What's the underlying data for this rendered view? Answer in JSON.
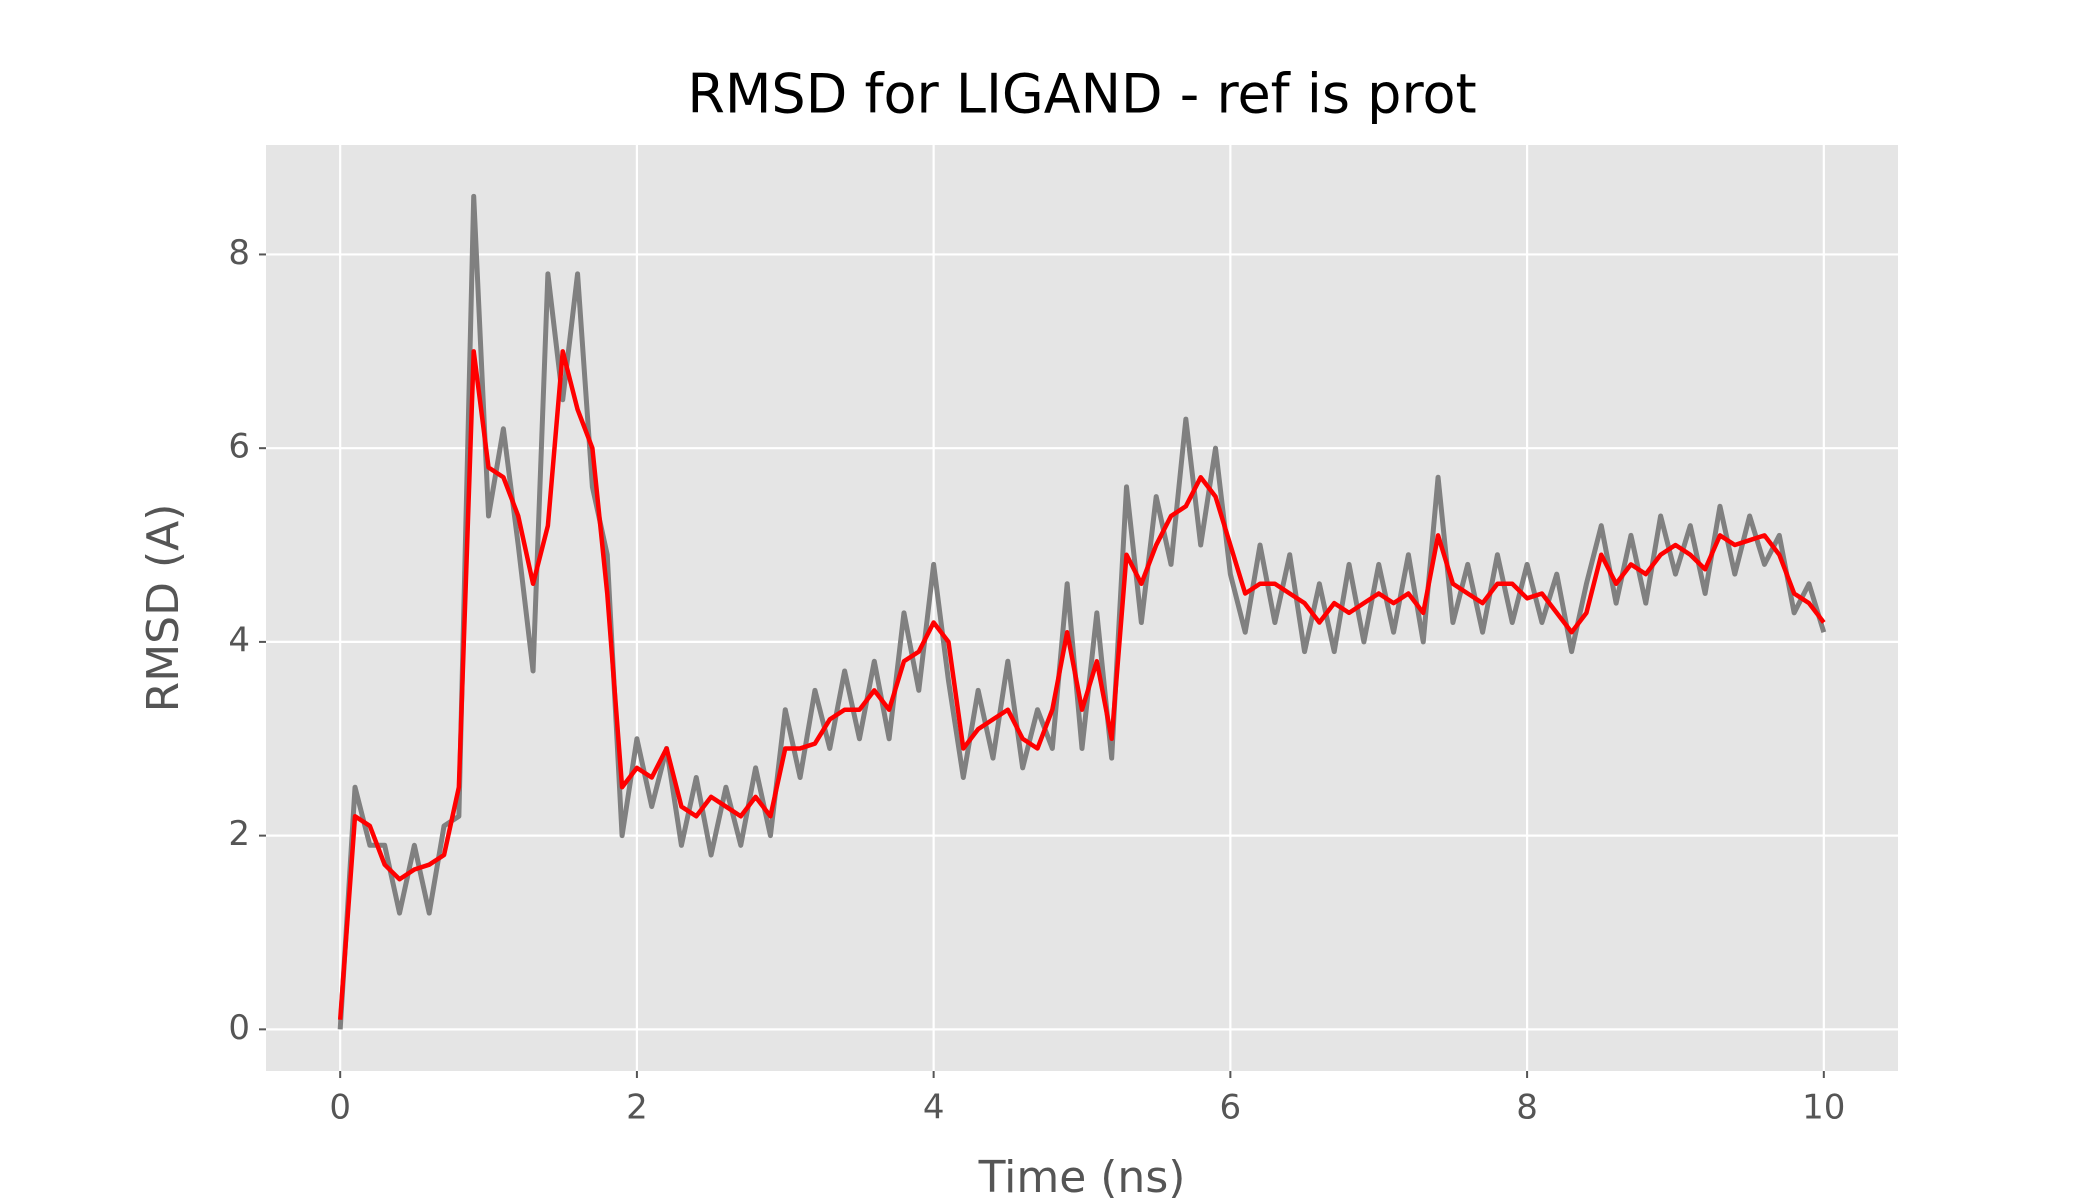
{
  "chart_data": {
    "type": "line",
    "title": "RMSD for LIGAND - ref is prot",
    "x_label": "Time (ns)",
    "y_label": "RMSD (A)",
    "xlim": [
      -0.5,
      10.5
    ],
    "xticks": [
      0,
      2,
      4,
      6,
      8,
      10
    ],
    "ylim": [
      -0.43,
      9.13
    ],
    "yticks": [
      0,
      2,
      4,
      6,
      8
    ],
    "grid": true,
    "x": [
      0,
      0.1,
      0.2,
      0.3,
      0.4,
      0.5,
      0.6,
      0.7,
      0.8,
      0.9,
      1,
      1.1,
      1.2,
      1.3,
      1.4,
      1.5,
      1.6,
      1.7,
      1.8,
      1.9,
      2,
      2.1,
      2.2,
      2.3,
      2.4,
      2.5,
      2.6,
      2.7,
      2.8,
      2.9,
      3,
      3.1,
      3.2,
      3.3,
      3.4,
      3.5,
      3.6,
      3.7,
      3.8,
      3.9,
      4,
      4.1,
      4.2,
      4.3,
      4.4,
      4.5,
      4.6,
      4.7,
      4.8,
      4.9,
      5,
      5.1,
      5.2,
      5.3,
      5.4,
      5.5,
      5.6,
      5.7,
      5.8,
      5.9,
      6,
      6.1,
      6.2,
      6.3,
      6.4,
      6.5,
      6.6,
      6.7,
      6.8,
      6.9,
      7,
      7.1,
      7.2,
      7.3,
      7.4,
      7.5,
      7.6,
      7.7,
      7.8,
      7.9,
      8,
      8.1,
      8.2,
      8.3,
      8.4,
      8.5,
      8.6,
      8.7,
      8.8,
      8.9,
      9,
      9.1,
      9.2,
      9.3,
      9.4,
      9.5,
      9.6,
      9.7,
      9.8,
      9.9,
      10
    ],
    "series": [
      {
        "color": "#808080",
        "values": [
          0,
          2.5,
          1.9,
          1.9,
          1.2,
          1.9,
          1.2,
          2.1,
          2.2,
          8.6,
          5.3,
          6.2,
          5.0,
          3.7,
          7.8,
          6.5,
          7.8,
          5.6,
          4.9,
          2.0,
          3.0,
          2.3,
          2.9,
          1.9,
          2.6,
          1.8,
          2.5,
          1.9,
          2.7,
          2.0,
          3.3,
          2.6,
          3.5,
          2.9,
          3.7,
          3.0,
          3.8,
          3.0,
          4.3,
          3.5,
          4.8,
          3.6,
          2.6,
          3.5,
          2.8,
          3.8,
          2.7,
          3.3,
          2.9,
          4.6,
          2.9,
          4.3,
          2.8,
          5.6,
          4.2,
          5.5,
          4.8,
          6.3,
          5.0,
          6.0,
          4.7,
          4.1,
          5.0,
          4.2,
          4.9,
          3.9,
          4.6,
          3.9,
          4.8,
          4.0,
          4.8,
          4.1,
          4.9,
          4.0,
          5.7,
          4.2,
          4.8,
          4.1,
          4.9,
          4.2,
          4.8,
          4.2,
          4.7,
          3.9,
          4.6,
          5.2,
          4.4,
          5.1,
          4.4,
          5.3,
          4.7,
          5.2,
          4.5,
          5.4,
          4.7,
          5.3,
          4.8,
          5.1,
          4.3,
          4.6,
          4.1
        ]
      },
      {
        "color": "#ff0000",
        "values": [
          0.1,
          2.2,
          2.1,
          1.7,
          1.55,
          1.65,
          1.7,
          1.8,
          2.5,
          7.0,
          5.8,
          5.7,
          5.3,
          4.6,
          5.2,
          7.0,
          6.4,
          6.0,
          4.5,
          2.5,
          2.7,
          2.6,
          2.9,
          2.3,
          2.2,
          2.4,
          2.3,
          2.2,
          2.4,
          2.2,
          2.9,
          2.9,
          2.95,
          3.2,
          3.3,
          3.3,
          3.5,
          3.3,
          3.8,
          3.9,
          4.2,
          4.0,
          2.9,
          3.1,
          3.2,
          3.3,
          3.0,
          2.9,
          3.3,
          4.1,
          3.3,
          3.8,
          3.0,
          4.9,
          4.6,
          5.0,
          5.3,
          5.4,
          5.7,
          5.5,
          5.0,
          4.5,
          4.6,
          4.6,
          4.5,
          4.4,
          4.2,
          4.4,
          4.3,
          4.4,
          4.5,
          4.4,
          4.5,
          4.3,
          5.1,
          4.6,
          4.5,
          4.4,
          4.6,
          4.6,
          4.45,
          4.5,
          4.3,
          4.1,
          4.3,
          4.9,
          4.6,
          4.8,
          4.7,
          4.9,
          5.0,
          4.9,
          4.75,
          5.1,
          5.0,
          5.05,
          5.1,
          4.9,
          4.5,
          4.4,
          4.2
        ]
      }
    ]
  }
}
